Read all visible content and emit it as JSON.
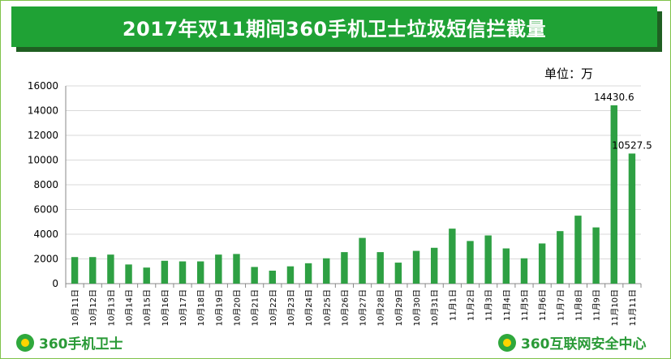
{
  "title": "2017年双11期间360手机卫士垃圾短信拦截量",
  "unit_label": "单位：万",
  "logos": {
    "left": "360手机卫士",
    "right": "360互联网安全中心"
  },
  "colors": {
    "title_bg": "#1fa235",
    "bar": "#2ea043",
    "grid": "#d9d9d9"
  },
  "chart_data": {
    "type": "bar",
    "title": "2017年双11期间360手机卫士垃圾短信拦截量",
    "ylabel": "",
    "xlabel": "",
    "ylim": [
      0,
      16000
    ],
    "yticks": [
      0,
      2000,
      4000,
      6000,
      8000,
      10000,
      12000,
      14000,
      16000
    ],
    "grid": true,
    "categories": [
      "10月11日",
      "10月12日",
      "10月13日",
      "10月14日",
      "10月15日",
      "10月16日",
      "10月17日",
      "10月18日",
      "10月19日",
      "10月20日",
      "10月21日",
      "10月22日",
      "10月23日",
      "10月24日",
      "10月25日",
      "10月26日",
      "10月27日",
      "10月28日",
      "10月29日",
      "10月30日",
      "10月31日",
      "11月1日",
      "11月2日",
      "11月3日",
      "11月4日",
      "11月5日",
      "11月6日",
      "11月7日",
      "11月8日",
      "11月9日",
      "11月10日",
      "11月11日"
    ],
    "values": [
      2150,
      2150,
      2350,
      1550,
      1300,
      1850,
      1800,
      1800,
      2350,
      2400,
      1350,
      1050,
      1400,
      1650,
      2050,
      2550,
      3700,
      2550,
      1700,
      2650,
      2900,
      4450,
      3450,
      3900,
      2850,
      2050,
      3250,
      4250,
      5500,
      4550,
      14430.6,
      10527.5
    ],
    "data_labels": [
      {
        "index": 30,
        "text": "14430.6"
      },
      {
        "index": 31,
        "text": "10527.5"
      }
    ]
  }
}
